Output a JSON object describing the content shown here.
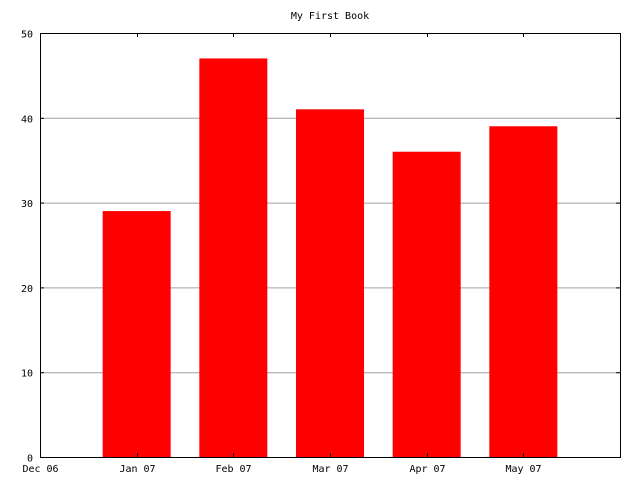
{
  "chart_data": {
    "type": "bar",
    "title": "My First Book",
    "xlabel": "",
    "ylabel": "",
    "x_axis": {
      "type": "time",
      "range": [
        "2006-12-01",
        "2007-06-01"
      ],
      "tick_labels": [
        "Dec 06",
        "Jan 07",
        "Feb 07",
        "Mar 07",
        "Apr 07",
        "May 07"
      ]
    },
    "y_axis": {
      "range": [
        0,
        50
      ],
      "ticks": [
        0,
        10,
        20,
        30,
        40,
        50
      ]
    },
    "categories": [
      "Jan 07",
      "Feb 07",
      "Mar 07",
      "Apr 07",
      "May 07"
    ],
    "values": [
      29,
      47,
      41,
      36,
      39
    ],
    "grid": true,
    "bar_color": "#ff0000",
    "grid_color": "#a0a0a0",
    "axis_color": "#000000"
  }
}
